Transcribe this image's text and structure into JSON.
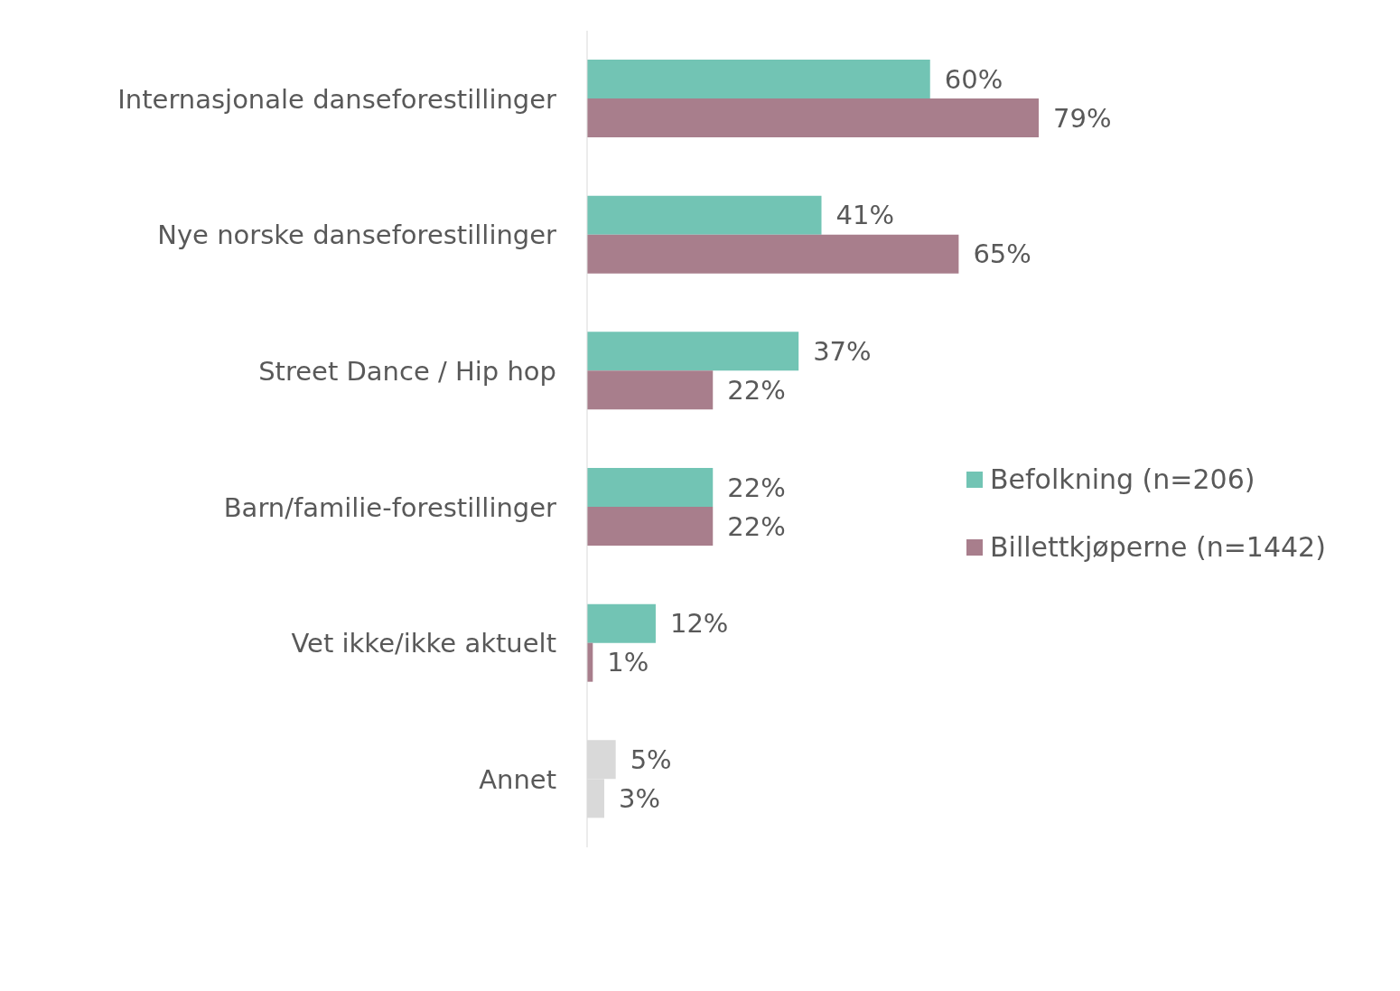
{
  "chart_data": {
    "type": "bar",
    "orientation": "horizontal",
    "categories": [
      "Internasjonale danseforestillinger",
      "Nye norske danseforestillinger",
      "Street Dance / Hip hop",
      "Barn/familie-forestillinger",
      "Vet ikke/ikke aktuelt",
      "Annet"
    ],
    "series": [
      {
        "name": "Befolkning (n=206)",
        "color": "#72c4b4",
        "colors": [
          "#72c4b4",
          "#72c4b4",
          "#72c4b4",
          "#72c4b4",
          "#72c4b4",
          "#d9d9d9"
        ],
        "values": [
          60,
          41,
          37,
          22,
          12,
          5
        ],
        "value_labels": [
          "60%",
          "41%",
          "37%",
          "22%",
          "12%",
          "5%"
        ]
      },
      {
        "name": "Billettkjøperne (n=1442)",
        "color": "#a87e8c",
        "colors": [
          "#a87e8c",
          "#a87e8c",
          "#a87e8c",
          "#a87e8c",
          "#a87e8c",
          "#d9d9d9"
        ],
        "values": [
          79,
          65,
          22,
          22,
          1,
          3
        ],
        "value_labels": [
          "79%",
          "65%",
          "22%",
          "22%",
          "1%",
          "3%"
        ]
      }
    ],
    "legend": "right",
    "tick_labels": "y",
    "grid": false
  }
}
